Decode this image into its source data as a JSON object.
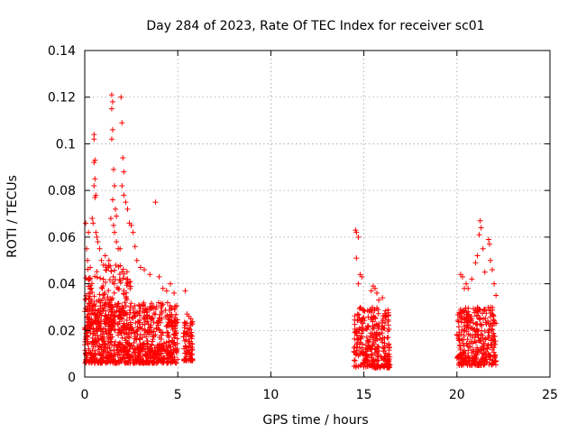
{
  "chart_data": {
    "type": "scatter",
    "title": "Day 284 of 2023, Rate Of TEC Index for receiver sc01",
    "xlabel": "GPS time / hours",
    "ylabel": "ROTI / TECUs",
    "xlim": [
      0,
      25
    ],
    "ylim": [
      0,
      0.14
    ],
    "xticks": [
      0,
      5,
      10,
      15,
      20,
      25
    ],
    "xtick_labels": [
      "0",
      "5",
      "10",
      "15",
      "20",
      "25"
    ],
    "yticks": [
      0,
      0.02,
      0.04,
      0.06,
      0.08,
      0.1,
      0.12,
      0.14
    ],
    "ytick_labels": [
      "0",
      "0.02",
      "0.04",
      "0.06",
      "0.08",
      "0.1",
      "0.12",
      "0.14"
    ],
    "grid": true,
    "marker": "plus",
    "color": "#ff0000",
    "series": [
      {
        "points": [
          [
            0.05,
            0.066
          ],
          [
            0.1,
            0.055
          ],
          [
            0.15,
            0.05
          ],
          [
            0.2,
            0.062
          ],
          [
            0.3,
            0.047
          ],
          [
            0.35,
            0.038
          ],
          [
            0.4,
            0.068
          ],
          [
            0.45,
            0.066
          ],
          [
            0.5,
            0.104
          ],
          [
            0.5,
            0.102
          ],
          [
            0.55,
            0.093
          ],
          [
            0.5,
            0.092
          ],
          [
            0.55,
            0.085
          ],
          [
            0.5,
            0.082
          ],
          [
            0.6,
            0.078
          ],
          [
            0.55,
            0.077
          ],
          [
            0.6,
            0.062
          ],
          [
            0.65,
            0.06
          ],
          [
            0.7,
            0.058
          ],
          [
            0.8,
            0.055
          ],
          [
            0.9,
            0.05
          ],
          [
            1.0,
            0.048
          ],
          [
            1.1,
            0.052
          ],
          [
            1.2,
            0.047
          ],
          [
            1.3,
            0.05
          ],
          [
            1.45,
            0.121
          ],
          [
            1.5,
            0.118
          ],
          [
            1.45,
            0.115
          ],
          [
            1.5,
            0.106
          ],
          [
            1.45,
            0.102
          ],
          [
            1.55,
            0.089
          ],
          [
            1.6,
            0.082
          ],
          [
            1.5,
            0.076
          ],
          [
            1.65,
            0.072
          ],
          [
            1.7,
            0.069
          ],
          [
            1.4,
            0.068
          ],
          [
            1.55,
            0.065
          ],
          [
            1.6,
            0.062
          ],
          [
            1.7,
            0.058
          ],
          [
            1.8,
            0.055
          ],
          [
            1.9,
            0.055
          ],
          [
            1.95,
            0.12
          ],
          [
            2.0,
            0.109
          ],
          [
            2.05,
            0.094
          ],
          [
            2.1,
            0.088
          ],
          [
            2.0,
            0.082
          ],
          [
            2.1,
            0.078
          ],
          [
            2.2,
            0.075
          ],
          [
            2.3,
            0.072
          ],
          [
            2.4,
            0.066
          ],
          [
            2.5,
            0.065
          ],
          [
            2.6,
            0.062
          ],
          [
            2.7,
            0.056
          ],
          [
            2.8,
            0.05
          ],
          [
            3.0,
            0.047
          ],
          [
            3.2,
            0.046
          ],
          [
            3.5,
            0.044
          ],
          [
            3.8,
            0.075
          ],
          [
            4.0,
            0.043
          ],
          [
            4.2,
            0.038
          ],
          [
            4.4,
            0.037
          ],
          [
            4.6,
            0.04
          ],
          [
            4.8,
            0.036
          ],
          [
            5.4,
            0.037
          ],
          [
            5.5,
            0.027
          ],
          [
            5.6,
            0.026
          ],
          [
            5.7,
            0.025
          ],
          [
            14.55,
            0.063
          ],
          [
            14.6,
            0.062
          ],
          [
            14.7,
            0.06
          ],
          [
            14.6,
            0.051
          ],
          [
            14.8,
            0.044
          ],
          [
            14.9,
            0.043
          ],
          [
            14.7,
            0.04
          ],
          [
            15.4,
            0.037
          ],
          [
            15.5,
            0.039
          ],
          [
            15.6,
            0.038
          ],
          [
            15.7,
            0.036
          ],
          [
            15.8,
            0.033
          ],
          [
            16.0,
            0.034
          ],
          [
            16.2,
            0.026
          ],
          [
            20.2,
            0.044
          ],
          [
            20.3,
            0.043
          ],
          [
            20.4,
            0.038
          ],
          [
            20.5,
            0.04
          ],
          [
            20.6,
            0.038
          ],
          [
            20.8,
            0.042
          ],
          [
            21.0,
            0.049
          ],
          [
            21.1,
            0.052
          ],
          [
            21.2,
            0.061
          ],
          [
            21.25,
            0.067
          ],
          [
            21.3,
            0.064
          ],
          [
            21.4,
            0.055
          ],
          [
            21.5,
            0.045
          ],
          [
            21.7,
            0.059
          ],
          [
            21.75,
            0.057
          ],
          [
            21.8,
            0.05
          ],
          [
            21.9,
            0.046
          ],
          [
            22.0,
            0.04
          ],
          [
            22.1,
            0.035
          ]
        ],
        "dense_clusters": [
          {
            "x_range": [
              0.0,
              5.0
            ],
            "y_range": [
              0.006,
              0.032
            ],
            "count": 900
          },
          {
            "x_range": [
              0.0,
              2.5
            ],
            "y_range": [
              0.02,
              0.048
            ],
            "count": 200
          },
          {
            "x_range": [
              5.3,
              5.8
            ],
            "y_range": [
              0.007,
              0.024
            ],
            "count": 80
          },
          {
            "x_range": [
              14.45,
              16.4
            ],
            "y_range": [
              0.004,
              0.03
            ],
            "count": 300
          },
          {
            "x_range": [
              20.0,
              22.1
            ],
            "y_range": [
              0.005,
              0.03
            ],
            "count": 350
          }
        ]
      }
    ]
  }
}
